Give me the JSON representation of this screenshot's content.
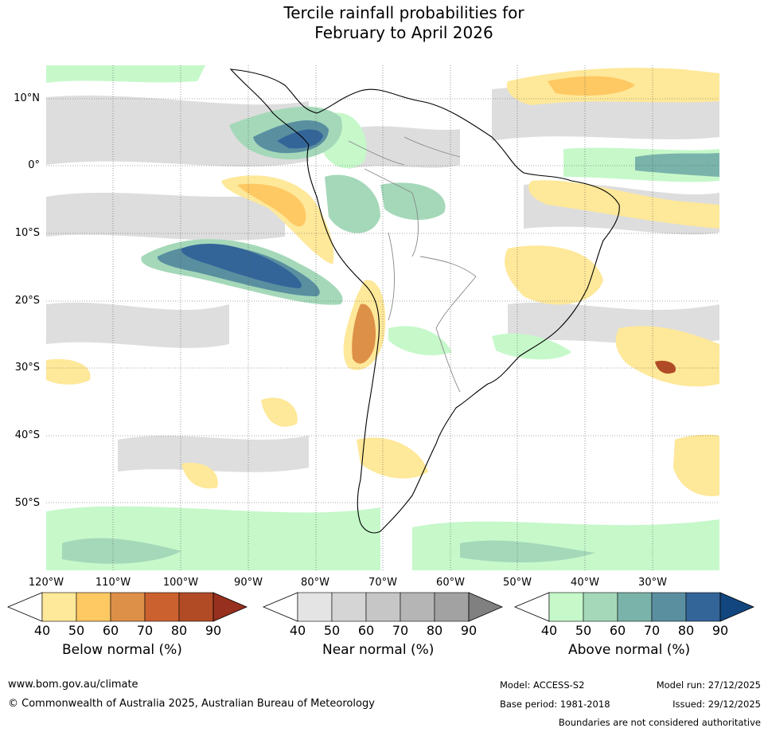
{
  "title": {
    "line1": "Tercile rainfall probabilities for",
    "line2": "February to April 2026"
  },
  "map": {
    "lat_labels": [
      "10°N",
      "0°",
      "10°S",
      "20°S",
      "30°S",
      "40°S",
      "50°S"
    ],
    "lon_labels": [
      "120°W",
      "110°W",
      "100°W",
      "90°W",
      "80°W",
      "70°W",
      "60°W",
      "50°W",
      "40°W",
      "30°W"
    ]
  },
  "legends": [
    {
      "id": "below",
      "title": "Below normal (%)",
      "ticks": [
        "40",
        "50",
        "60",
        "70",
        "80",
        "90"
      ],
      "colors": [
        "#fee899",
        "#fec863",
        "#dd9048",
        "#cc6130",
        "#b14b26",
        "#97301e"
      ]
    },
    {
      "id": "near",
      "title": "Near normal (%)",
      "ticks": [
        "40",
        "50",
        "60",
        "70",
        "80",
        "90"
      ],
      "colors": [
        "#e4e4e4",
        "#d5d5d5",
        "#c6c6c6",
        "#b5b5b5",
        "#a2a2a2",
        "#808080"
      ]
    },
    {
      "id": "above",
      "title": "Above normal (%)",
      "ticks": [
        "40",
        "50",
        "60",
        "70",
        "80",
        "90"
      ],
      "colors": [
        "#c6f8ca",
        "#a4d8b9",
        "#7ab3aa",
        "#5a8fa0",
        "#336599",
        "#12467e"
      ]
    }
  ],
  "footer": {
    "website": "www.bom.gov.au/climate",
    "copyright": "© Commonwealth of Australia 2025, Australian Bureau of Meteorology",
    "model": "Model: ACCESS-S2",
    "base_period": "Base period: 1981-2018",
    "model_run": "Model run: 27/12/2025",
    "issued": "Issued: 29/12/2025",
    "disclaimer": "Boundaries are not considered authoritative"
  }
}
